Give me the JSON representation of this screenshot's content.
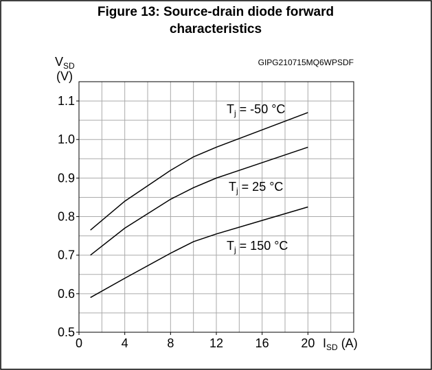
{
  "chart_data": {
    "type": "line",
    "title": [
      "Figure 13: Source-drain diode forward",
      "characteristics"
    ],
    "code": "GIPG210715MQ6WPSDF",
    "ylabel": {
      "base": "V",
      "sub": "SD",
      "unit": "(V)"
    },
    "xlabel": {
      "base": "I",
      "sub": "SD",
      "unit": " (A)"
    },
    "xlim": [
      0,
      24
    ],
    "ylim": [
      0.5,
      1.15
    ],
    "xticks": [
      0,
      4,
      8,
      12,
      16,
      20
    ],
    "yticks": [
      0.5,
      0.6,
      0.7,
      0.8,
      0.9,
      {
        "value": 1,
        "label": "1.0"
      },
      1.1
    ],
    "xgrid": [
      0,
      2,
      4,
      6,
      8,
      10,
      12,
      14,
      16,
      18,
      20,
      22,
      24
    ],
    "ygrid": [
      0.5,
      0.55,
      0.6,
      0.65,
      0.7,
      0.75,
      0.8,
      0.85,
      0.9,
      0.95,
      1.0,
      1.05,
      1.1,
      1.15
    ],
    "grid": true,
    "x": [
      1,
      4,
      8,
      10,
      12,
      16,
      20
    ],
    "series": [
      {
        "name": {
          "base": "T",
          "sub": "j",
          "text": " = -50 °C"
        },
        "color": "#000000",
        "values": [
          0.765,
          0.84,
          0.92,
          0.955,
          0.98,
          1.025,
          1.07
        ]
      },
      {
        "name": {
          "base": "T",
          "sub": "j",
          "text": " = 25 °C"
        },
        "color": "#000000",
        "values": [
          0.7,
          0.77,
          0.845,
          0.875,
          0.9,
          0.94,
          0.98
        ]
      },
      {
        "name": {
          "base": "T",
          "sub": "j",
          "text": " = 150 °C"
        },
        "color": "#000000",
        "values": [
          0.59,
          0.64,
          0.705,
          0.735,
          0.755,
          0.79,
          0.825
        ]
      }
    ]
  }
}
